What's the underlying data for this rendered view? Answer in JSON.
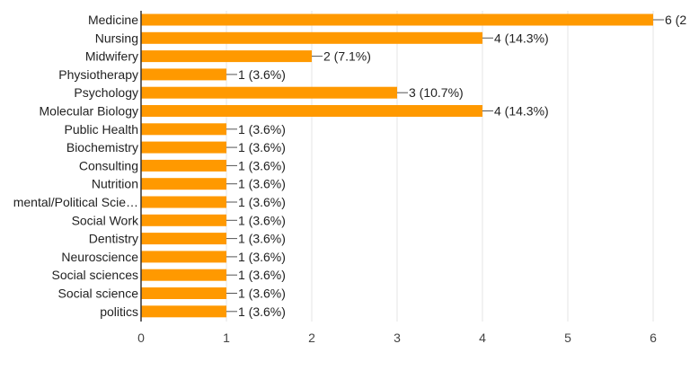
{
  "chart_data": {
    "type": "bar",
    "orientation": "horizontal",
    "categories": [
      "Medicine",
      "Nursing",
      "Midwifery",
      "Physiotherapy",
      "Psychology",
      "Molecular Biology",
      "Public Health",
      "Biochemistry",
      "Consulting",
      "Nutrition",
      "mental/Political Scie…",
      "Social Work",
      "Dentistry",
      "Neuroscience",
      "Social sciences",
      "Social science",
      "politics"
    ],
    "values": [
      6,
      4,
      2,
      1,
      3,
      4,
      1,
      1,
      1,
      1,
      1,
      1,
      1,
      1,
      1,
      1,
      1
    ],
    "data_labels": [
      "6 (2",
      "4 (14.3%)",
      "2 (7.1%)",
      "1 (3.6%)",
      "3 (10.7%)",
      "4 (14.3%)",
      "1 (3.6%)",
      "1 (3.6%)",
      "1 (3.6%)",
      "1 (3.6%)",
      "1 (3.6%)",
      "1 (3.6%)",
      "1 (3.6%)",
      "1 (3.6%)",
      "1 (3.6%)",
      "1 (3.6%)",
      "1 (3.6%)"
    ],
    "x_ticks": [
      "0",
      "1",
      "2",
      "3",
      "4",
      "5",
      "6"
    ],
    "xlim": [
      0,
      6
    ],
    "grid": true,
    "colors": {
      "bar": "#ff9900",
      "grid": "#e6e6e6",
      "axis": "#333333"
    }
  }
}
